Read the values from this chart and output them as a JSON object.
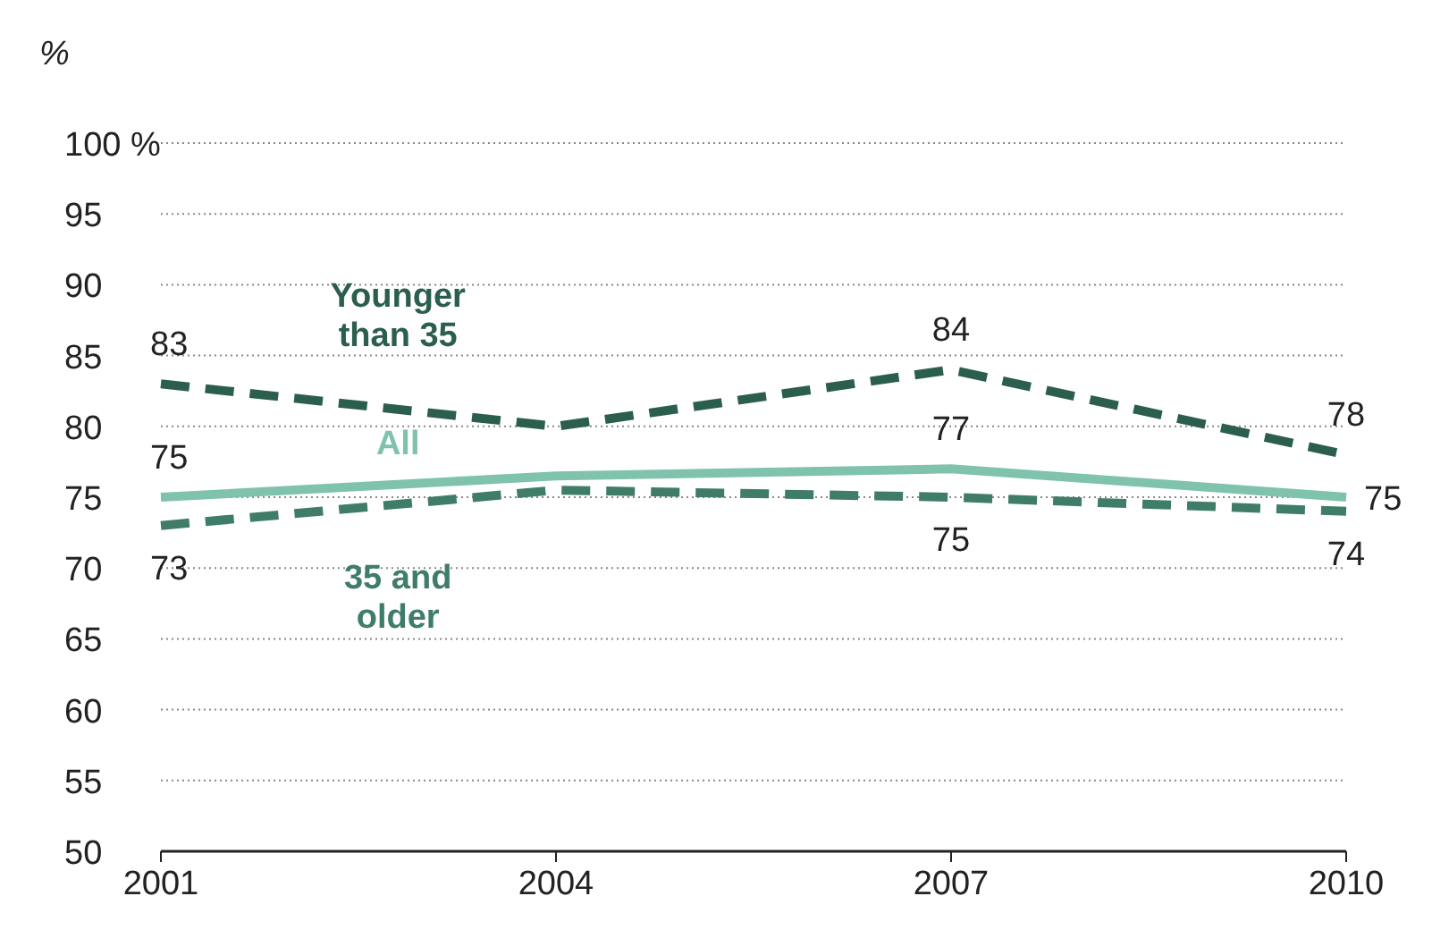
{
  "chart_data": {
    "type": "line",
    "ylabel": "%",
    "x": [
      2001,
      2004,
      2007,
      2010
    ],
    "xlim": [
      2001,
      2010
    ],
    "xticks": [
      2001,
      2004,
      2007,
      2010
    ],
    "ylim": [
      50,
      100
    ],
    "yticks": [
      50,
      55,
      60,
      65,
      70,
      75,
      80,
      85,
      90,
      95,
      {
        "value": 100,
        "label": "100 %"
      }
    ],
    "grid": "y",
    "marker": "none",
    "series": [
      {
        "name": "Younger than 35",
        "color": "#2b5e4f",
        "line_style": "dashed",
        "values": [
          83,
          80,
          84,
          78
        ],
        "value_labels": [
          "83",
          null,
          "84",
          "78"
        ]
      },
      {
        "name": "35 and older",
        "color": "#3f7d68",
        "line_style": "dashed",
        "values": [
          73,
          75.5,
          75,
          74
        ],
        "value_labels": [
          "73",
          null,
          "75",
          "74"
        ]
      },
      {
        "name": "All",
        "color": "#7fc2ae",
        "line_style": "solid",
        "values": [
          75,
          76.5,
          77,
          75
        ],
        "value_labels": [
          "75",
          null,
          "77",
          "75"
        ]
      }
    ]
  }
}
